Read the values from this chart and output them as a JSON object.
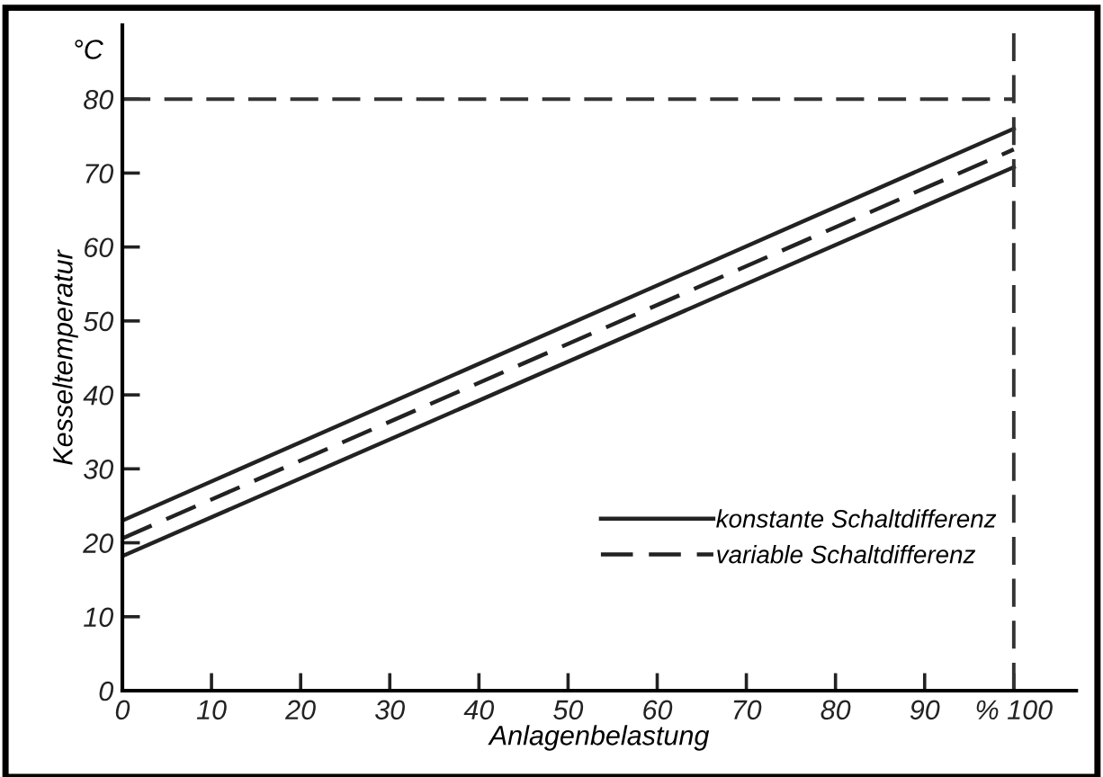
{
  "chart_data": {
    "type": "line",
    "xlabel": "Anlagenbelastung",
    "ylabel": "Kesseltemperatur",
    "annotations": [
      "°C"
    ],
    "x": [
      0,
      100
    ],
    "series": [
      {
        "name": "konstante Schaltdifferenz",
        "color": "#222222",
        "values": [
          23,
          76
        ],
        "line_style": "solid"
      },
      {
        "name": "variable Schaltdifferenz",
        "color": "#222222",
        "values": [
          20.6,
          73.2
        ],
        "line_style": "dashed"
      },
      {
        "color": "#222222",
        "values": [
          18.2,
          70.8
        ],
        "line_style": "solid"
      }
    ],
    "xlim": [
      0,
      107
    ],
    "ylim": [
      0,
      90
    ],
    "xticks": [
      0,
      10,
      20,
      30,
      40,
      50,
      60,
      70,
      80,
      90,
      {
        "value": 100,
        "label": "% 100"
      }
    ],
    "yticks": [
      0,
      10,
      20,
      30,
      40,
      50,
      60,
      70,
      80
    ],
    "ref_lines": [
      {
        "axis": "y",
        "value": 80,
        "color": "#333333",
        "line_style": "dashed"
      },
      {
        "axis": "x",
        "value": 100,
        "color": "#333333",
        "line_style": "dashed"
      }
    ],
    "grid": false,
    "legend": "lower right",
    "marker": "none"
  }
}
